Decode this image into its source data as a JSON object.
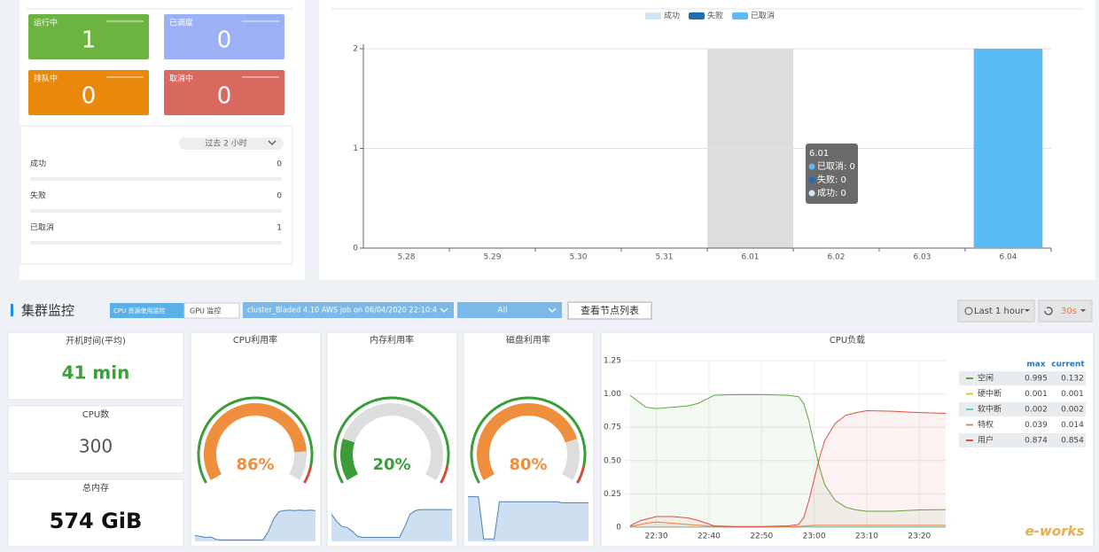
{
  "status_cards": [
    {
      "label": "运行中",
      "value": 1,
      "color": "#6db33f"
    },
    {
      "label": "已调度",
      "value": 0,
      "color": "#9bb0f5"
    },
    {
      "label": "排队中",
      "value": 0,
      "color": "#e8890c"
    },
    {
      "label": "取消中",
      "value": 0,
      "color": "#d9685e"
    }
  ],
  "summary": {
    "period": "过去 2 小时",
    "rows": [
      {
        "label": "成功",
        "value": 0
      },
      {
        "label": "失败",
        "value": 0
      },
      {
        "label": "已取消",
        "value": 1
      }
    ]
  },
  "cluster_monitor": {
    "title": "集群监控",
    "tabs": [
      "CPU 资源使用监控",
      "GPU 监控"
    ],
    "job_select": "cluster_Bladed 4.10 AWS job on 06/04/2020 22:10:4",
    "node_select": "All",
    "node_list_button": "查看节点列表",
    "time_range": "Last 1 hour",
    "refresh": "30s"
  },
  "stats": [
    {
      "label": "开机时间(平均)",
      "value": "41 min",
      "color": "#3aa03a"
    },
    {
      "label": "CPU数",
      "value": 300,
      "color": "#555555"
    },
    {
      "label": "总内存",
      "value": "574 GiB",
      "color": "#111111"
    }
  ],
  "watermark": "e-works",
  "chart_data": [
    {
      "type": "bar",
      "categories": [
        "5.28",
        "5.29",
        "5.30",
        "5.31",
        "6.01",
        "6.02",
        "6.03",
        "6.04"
      ],
      "series": [
        {
          "name": "成功",
          "color": "#cde7f7",
          "values": [
            0,
            0,
            0,
            0,
            0,
            0,
            0,
            0
          ]
        },
        {
          "name": "失败",
          "color": "#1a6fb5",
          "values": [
            0,
            0,
            0,
            0,
            0,
            0,
            0,
            0
          ]
        },
        {
          "name": "已取消",
          "color": "#5bbcf5",
          "values": [
            0,
            0,
            0,
            0,
            0,
            0,
            0,
            2
          ]
        }
      ],
      "ylim": [
        0,
        2
      ],
      "yticks": [
        0,
        1,
        2
      ],
      "grid": true,
      "tooltip": {
        "category": "6.01",
        "items": [
          "已取消: 0",
          "失败: 0",
          "成功: 0"
        ]
      }
    },
    {
      "type": "gauge",
      "title": "CPU利用率",
      "value": 86,
      "value_label": "86%",
      "color": "#ef8f3e",
      "sparkline": {
        "ylim": [
          0,
          100
        ],
        "values": [
          12,
          10,
          8,
          9,
          4,
          3,
          3,
          3,
          3,
          3,
          3,
          3,
          3,
          3,
          20,
          45,
          60,
          62,
          63,
          62,
          63,
          62,
          63,
          62
        ]
      }
    },
    {
      "type": "gauge",
      "title": "内存利用率",
      "value": 20,
      "value_label": "20%",
      "color": "#3a9d3a",
      "sparkline": {
        "ylim": [
          0,
          100
        ],
        "values": [
          55,
          40,
          30,
          28,
          20,
          10,
          8,
          8,
          8,
          8,
          8,
          8,
          8,
          8,
          30,
          55,
          62,
          64,
          64,
          64,
          64,
          64,
          64,
          64
        ]
      }
    },
    {
      "type": "gauge",
      "title": "磁盘利用率",
      "value": 80,
      "value_label": "80%",
      "color": "#ef8f3e",
      "sparkline": {
        "ylim": [
          0,
          100
        ],
        "values": [
          90,
          90,
          90,
          5,
          5,
          5,
          80,
          80,
          80,
          80,
          80,
          80,
          80,
          80,
          80,
          80,
          80,
          80,
          78,
          78,
          78,
          78,
          78,
          78
        ]
      }
    },
    {
      "type": "line",
      "title": "CPU负载",
      "legend_columns": [
        "max",
        "current"
      ],
      "x": [
        "22:25",
        "22:27",
        "22:28",
        "22:30",
        "22:33",
        "22:36",
        "22:38",
        "22:41",
        "22:45",
        "22:50",
        "22:55",
        "22:57",
        "22:58",
        "22:59",
        "23:00",
        "23:01",
        "23:02",
        "23:04",
        "23:06",
        "23:08",
        "23:10",
        "23:15",
        "23:20",
        "23:25"
      ],
      "xlim": [
        "22:24",
        "23:25"
      ],
      "xticks": [
        "22:30",
        "22:40",
        "22:50",
        "23:00",
        "23:10",
        "23:20"
      ],
      "ylim": [
        0,
        1.25
      ],
      "yticks": [
        0,
        0.25,
        {
          "value": 0.5,
          "label": "0.50"
        },
        0.75,
        {
          "value": 1,
          "label": "1.00"
        },
        1.25
      ],
      "grid": true,
      "series": [
        {
          "name": "空闲",
          "color": "#5aa845",
          "max": 0.995,
          "current": 0.132,
          "values": [
            0.99,
            0.93,
            0.9,
            0.89,
            0.9,
            0.91,
            0.93,
            0.99,
            0.995,
            0.995,
            0.99,
            0.98,
            0.93,
            0.8,
            0.62,
            0.45,
            0.32,
            0.2,
            0.15,
            0.13,
            0.12,
            0.12,
            0.13,
            0.132
          ]
        },
        {
          "name": "硬中断",
          "color": "#e8c33a",
          "max": 0.001,
          "current": 0.001,
          "values": [
            0.001,
            0.001,
            0.001,
            0.001,
            0.001,
            0.001,
            0.001,
            0.001,
            0.001,
            0.001,
            0.001,
            0.001,
            0.001,
            0.001,
            0.001,
            0.001,
            0.001,
            0.001,
            0.001,
            0.001,
            0.001,
            0.001,
            0.001,
            0.001
          ]
        },
        {
          "name": "软中断",
          "color": "#6cc3c9",
          "max": 0.002,
          "current": 0.002,
          "values": [
            0.001,
            0.001,
            0.001,
            0.001,
            0.001,
            0.001,
            0.001,
            0.001,
            0.001,
            0.001,
            0.001,
            0.001,
            0.002,
            0.002,
            0.002,
            0.002,
            0.002,
            0.002,
            0.002,
            0.002,
            0.002,
            0.002,
            0.002,
            0.002
          ]
        },
        {
          "name": "特权",
          "color": "#ef843c",
          "max": 0.039,
          "current": 0.014,
          "values": [
            0.005,
            0.02,
            0.03,
            0.039,
            0.03,
            0.02,
            0.015,
            0.005,
            0.003,
            0.003,
            0.004,
            0.005,
            0.008,
            0.012,
            0.014,
            0.014,
            0.014,
            0.014,
            0.014,
            0.014,
            0.014,
            0.014,
            0.014,
            0.014
          ]
        },
        {
          "name": "用户",
          "color": "#e24d42",
          "max": 0.874,
          "current": 0.854,
          "values": [
            0.01,
            0.05,
            0.06,
            0.08,
            0.08,
            0.07,
            0.05,
            0.01,
            0.005,
            0.005,
            0.01,
            0.02,
            0.07,
            0.2,
            0.36,
            0.52,
            0.65,
            0.78,
            0.84,
            0.86,
            0.874,
            0.87,
            0.86,
            0.854
          ]
        }
      ]
    }
  ]
}
